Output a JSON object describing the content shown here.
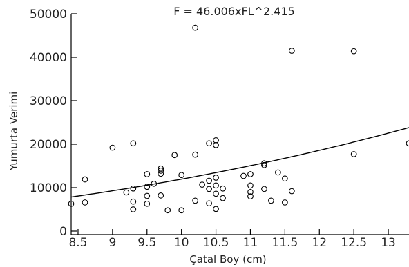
{
  "chart_data": {
    "type": "scatter",
    "title": "F = 46.006xFL^2.415",
    "xlabel": "Çatal Boy (cm)",
    "ylabel": "Yumurta Verimi",
    "xlim": [
      8.4,
      13.3
    ],
    "ylim": [
      0,
      50000
    ],
    "x_ticks": [
      "8.5",
      "9",
      "9.5",
      "10",
      "10.5",
      "11",
      "11.5",
      "12",
      "12.5",
      "13"
    ],
    "x_tick_values": [
      8.5,
      9,
      9.5,
      10,
      10.5,
      11,
      11.5,
      12,
      12.5,
      13
    ],
    "y_ticks": [
      "0",
      "10000",
      "20000",
      "30000",
      "40000",
      "50000"
    ],
    "y_tick_values": [
      0,
      10000,
      20000,
      30000,
      40000,
      50000
    ],
    "grid": false,
    "fit": {
      "coef": 46.006,
      "exponent": 2.415
    },
    "points": [
      [
        8.4,
        6300
      ],
      [
        8.6,
        6600
      ],
      [
        8.6,
        11900
      ],
      [
        9.0,
        19200
      ],
      [
        9.2,
        8900
      ],
      [
        9.3,
        9800
      ],
      [
        9.3,
        6800
      ],
      [
        9.3,
        5000
      ],
      [
        9.3,
        20200
      ],
      [
        9.5,
        13100
      ],
      [
        9.5,
        10200
      ],
      [
        9.5,
        8100
      ],
      [
        9.5,
        6300
      ],
      [
        9.6,
        10900
      ],
      [
        9.7,
        14400
      ],
      [
        9.7,
        13900
      ],
      [
        9.7,
        13200
      ],
      [
        9.7,
        8200
      ],
      [
        9.8,
        4800
      ],
      [
        9.9,
        17500
      ],
      [
        10.0,
        12900
      ],
      [
        10.0,
        4800
      ],
      [
        10.2,
        46800
      ],
      [
        10.2,
        17600
      ],
      [
        10.2,
        7000
      ],
      [
        10.3,
        10700
      ],
      [
        10.4,
        20200
      ],
      [
        10.4,
        11600
      ],
      [
        10.4,
        9700
      ],
      [
        10.4,
        6400
      ],
      [
        10.5,
        20900
      ],
      [
        10.5,
        19800
      ],
      [
        10.5,
        12300
      ],
      [
        10.5,
        10500
      ],
      [
        10.5,
        8600
      ],
      [
        10.5,
        5100
      ],
      [
        10.6,
        9800
      ],
      [
        10.6,
        7600
      ],
      [
        10.9,
        12700
      ],
      [
        11.0,
        13100
      ],
      [
        11.0,
        10500
      ],
      [
        11.0,
        9000
      ],
      [
        11.0,
        8000
      ],
      [
        11.2,
        15600
      ],
      [
        11.2,
        15200
      ],
      [
        11.2,
        9700
      ],
      [
        11.3,
        7000
      ],
      [
        11.4,
        13500
      ],
      [
        11.5,
        12100
      ],
      [
        11.5,
        6600
      ],
      [
        11.6,
        41500
      ],
      [
        11.6,
        9200
      ],
      [
        12.5,
        41400
      ],
      [
        12.5,
        17700
      ],
      [
        13.3,
        20200
      ]
    ]
  }
}
